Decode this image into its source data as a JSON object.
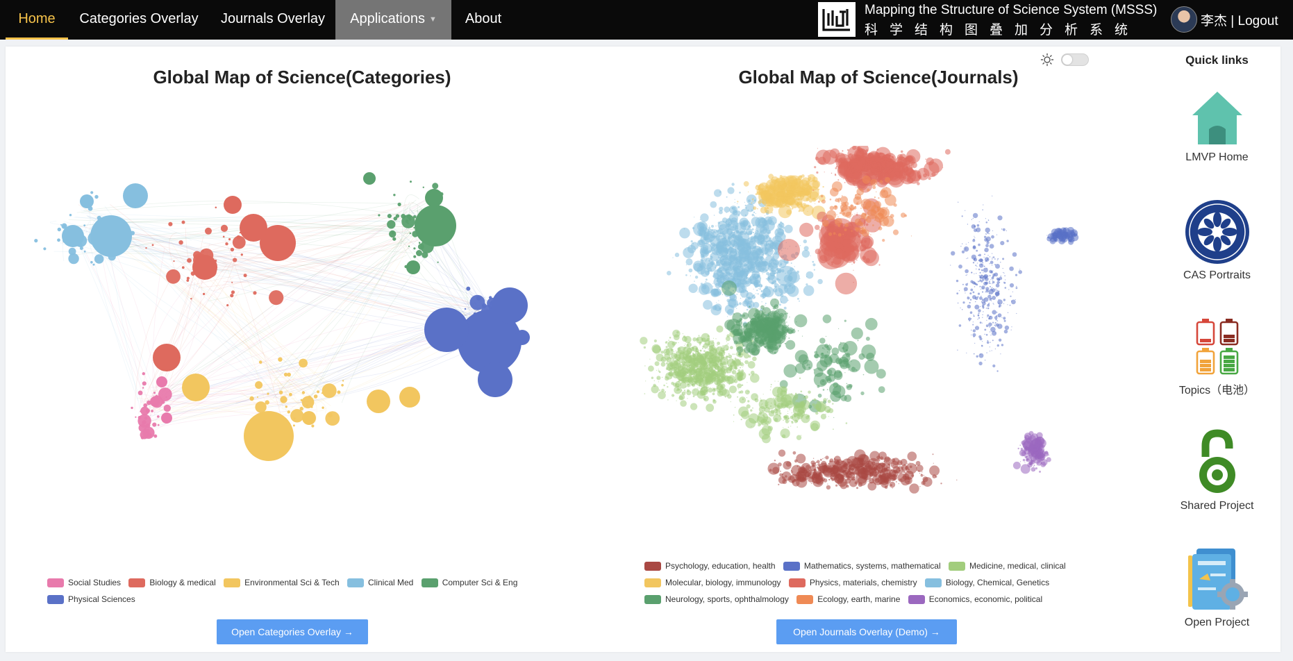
{
  "nav": {
    "items": [
      {
        "label": "Home"
      },
      {
        "label": "Categories Overlay"
      },
      {
        "label": "Journals Overlay"
      },
      {
        "label": "Applications"
      },
      {
        "label": "About"
      }
    ],
    "brand_title": "Mapping the Structure of Science System (MSSS)",
    "brand_subtitle_cn": "科学结构图叠加分析系统",
    "user_name": "李杰",
    "separator": "|",
    "logout_label": "Logout",
    "accent_color": "#f5c24a"
  },
  "categories_map": {
    "title": "Global Map of Science(Categories)",
    "legend": [
      {
        "label": "Social Studies",
        "color": "#e87aac"
      },
      {
        "label": "Biology & medical",
        "color": "#de6a5e"
      },
      {
        "label": "Environmental Sci & Tech",
        "color": "#f2c65f"
      },
      {
        "label": "Clinical Med",
        "color": "#86bfdf"
      },
      {
        "label": "Computer Sci & Eng",
        "color": "#5aa06e"
      },
      {
        "label": "Physical Sciences",
        "color": "#5a71c7"
      }
    ],
    "button_label": "Open Categories Overlay →"
  },
  "journals_map": {
    "title": "Global Map of Science(Journals)",
    "legend": [
      {
        "label": "Psychology, education, health",
        "color": "#a94843"
      },
      {
        "label": "Mathematics, systems, mathematical",
        "color": "#5a71c7"
      },
      {
        "label": "Medicine, medical, clinical",
        "color": "#a2cd7d"
      },
      {
        "label": "Molecular, biology, immunology",
        "color": "#f2c65f"
      },
      {
        "label": "Physics, materials, chemistry",
        "color": "#de6a5e"
      },
      {
        "label": "Biology, Chemical, Genetics",
        "color": "#86bfdf"
      },
      {
        "label": "Neurology, sports, ophthalmology",
        "color": "#5aa06e"
      },
      {
        "label": "Ecology, earth, marine",
        "color": "#ef8a55"
      },
      {
        "label": "Economics, economic, political",
        "color": "#9b68bf"
      }
    ],
    "button_label": "Open Journals Overlay (Demo) →"
  },
  "theme_toggle": {
    "icon": "sun-icon",
    "state": "off"
  },
  "quick_links": {
    "title": "Quick links",
    "items": [
      {
        "label": "LMVP Home",
        "icon": "house-icon"
      },
      {
        "label": "CAS Portraits",
        "icon": "cas-seal-icon"
      },
      {
        "label": "Topics（电池）",
        "icon": "battery-icon"
      },
      {
        "label": "Shared Project",
        "icon": "open-access-icon"
      },
      {
        "label": "Open Project",
        "icon": "open-project-icon"
      }
    ]
  }
}
